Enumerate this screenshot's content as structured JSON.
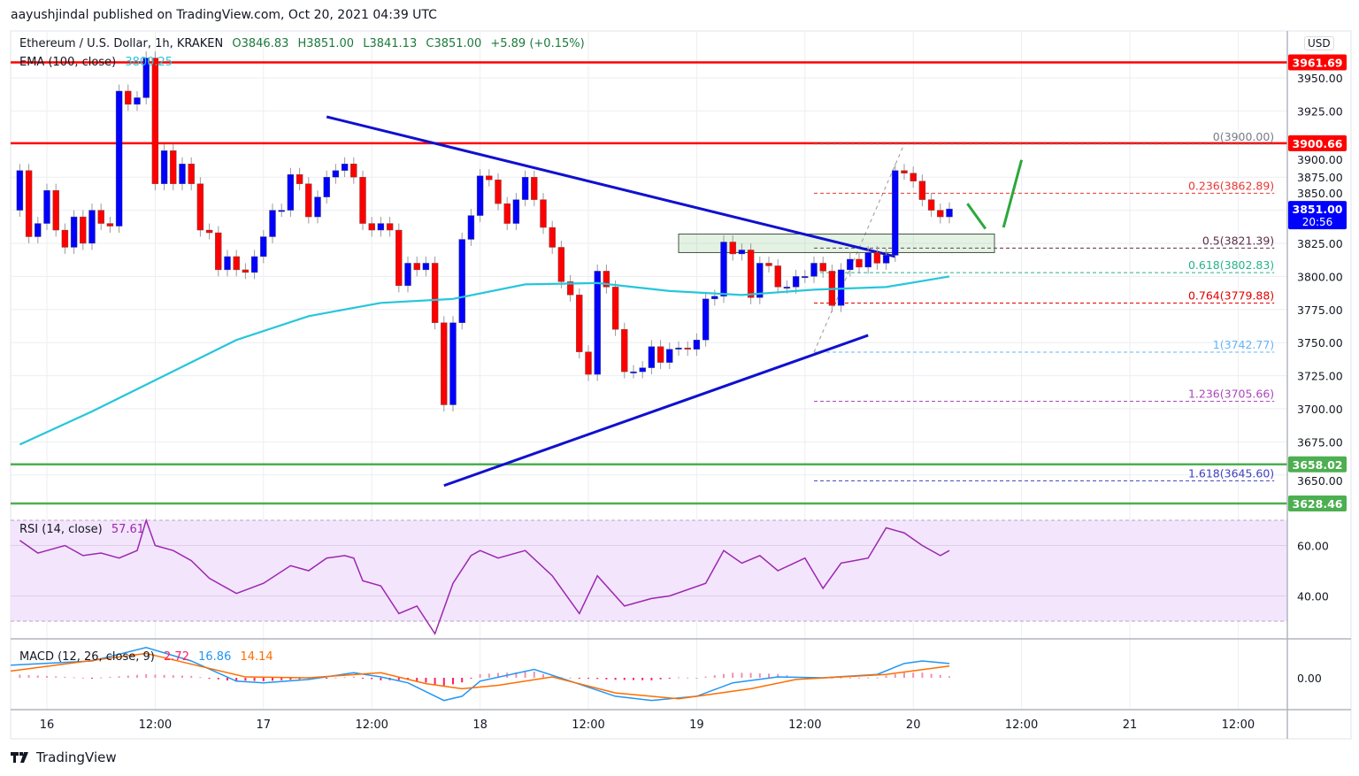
{
  "published": "aayushjindal published on TradingView.com, Oct 20, 2021 04:39 UTC",
  "legend": {
    "symbol": "Ethereum / U.S. Dollar, 1h, KRAKEN",
    "open": "O3846.83",
    "high": "H3851.00",
    "low": "L3841.13",
    "close": "C3851.00",
    "change": "+5.89 (+0.15%)",
    "ema_label": "EMA (100, close)",
    "ema_value": "3800.25",
    "rsi_label": "RSI (14, close)",
    "rsi_value": "57.61",
    "macd_label": "MACD (12, 26, close, 9)",
    "macd_hist": "2.72",
    "macd_macd": "16.86",
    "macd_signal": "14.14"
  },
  "currency_button": "USD",
  "brand": "TradingView",
  "colors": {
    "up": "#0000ff",
    "down": "#ff0000",
    "ema": "#26c6da",
    "rsi": "#9c27b0",
    "macd": "#2196f3",
    "signal": "#ff6d00",
    "resistance": "#ff0000",
    "support": "#4caf50",
    "trendline": "#1010d0",
    "arrow": "#2aa83a"
  },
  "chart_data": {
    "type": "candlestick",
    "title": "",
    "candles": {
      "start": "10-15 21:00",
      "interval": "1h",
      "first_open": 3850,
      "close": [
        3880,
        3830,
        3840,
        3865,
        3835,
        3822,
        3845,
        3825,
        3850,
        3840,
        3838,
        3940,
        3930,
        3935,
        3965,
        3870,
        3895,
        3870,
        3885,
        3870,
        3835,
        3833,
        3805,
        3815,
        3805,
        3803,
        3815,
        3830,
        3850,
        3850,
        3877,
        3870,
        3845,
        3860,
        3875,
        3880,
        3885,
        3875,
        3840,
        3835,
        3840,
        3835,
        3793,
        3810,
        3805,
        3810,
        3765,
        3703,
        3765,
        3828,
        3846,
        3876,
        3873,
        3855,
        3840,
        3858,
        3875,
        3858,
        3837,
        3822,
        3796,
        3786,
        3743,
        3726,
        3804,
        3792,
        3760,
        3728,
        3728,
        3731,
        3747,
        3735,
        3745,
        3746,
        3745,
        3752,
        3783,
        3785,
        3826,
        3817,
        3820,
        3784,
        3810,
        3808,
        3792,
        3792,
        3800,
        3800,
        3810,
        3804,
        3778,
        3805,
        3813,
        3807,
        3818,
        3810,
        3816,
        3880,
        3878,
        3872,
        3858,
        3850,
        3845,
        3851
      ]
    },
    "ema": [
      [
        "10-15 21:00",
        3673
      ],
      [
        "10-16 05:00",
        3698
      ],
      [
        "10-16 13:00",
        3725
      ],
      [
        "10-16 21:00",
        3752
      ],
      [
        "10-17 05:00",
        3770
      ],
      [
        "10-17 13:00",
        3780
      ],
      [
        "10-17 21:00",
        3783
      ],
      [
        "10-18 05:00",
        3794
      ],
      [
        "10-18 13:00",
        3795
      ],
      [
        "10-18 21:00",
        3789
      ],
      [
        "10-19 05:00",
        3786
      ],
      [
        "10-19 13:00",
        3790
      ],
      [
        "10-19 21:00",
        3792
      ],
      [
        "10-20 04:00",
        3800
      ]
    ],
    "y_axis": {
      "ticks": [
        "3650.00",
        "3675.00",
        "3700.00",
        "3725.00",
        "3750.00",
        "3775.00",
        "3800.00",
        "3825.00",
        "3850.00",
        "3875.00",
        "3900.00",
        "3925.00",
        "3950.00"
      ],
      "range": [
        3620,
        3975
      ]
    },
    "x_axis": {
      "ticks": [
        [
          "10-16 00:00",
          "16"
        ],
        [
          "10-16 12:00",
          "12:00"
        ],
        [
          "10-17 00:00",
          "17"
        ],
        [
          "10-17 12:00",
          "12:00"
        ],
        [
          "10-18 00:00",
          "18"
        ],
        [
          "10-18 12:00",
          "12:00"
        ],
        [
          "10-19 00:00",
          "19"
        ],
        [
          "10-19 12:00",
          "12:00"
        ],
        [
          "10-20 00:00",
          "20"
        ],
        [
          "10-20 12:00",
          "12:00"
        ],
        [
          "10-21 00:00",
          "21"
        ],
        [
          "10-21 12:00",
          "12:00"
        ]
      ]
    },
    "grid": true,
    "price_labels": [
      {
        "value": 3961.69,
        "text": "3961.69",
        "kind": "resistance"
      },
      {
        "value": 3900.66,
        "text": "3900.66",
        "kind": "resistance"
      },
      {
        "value": 3658.02,
        "text": "3658.02",
        "kind": "support"
      },
      {
        "value": 3628.46,
        "text": "3628.46",
        "kind": "support"
      }
    ],
    "last_price": {
      "value": 3851.0,
      "text": "3851.00",
      "countdown": "20:56"
    },
    "fibonacci": {
      "from": [
        "10-19 13:00",
        3742.77
      ],
      "to": [
        "10-19 23:00",
        3900.0
      ],
      "extend_to": "10-21 16:00",
      "levels": [
        {
          "ratio": "0",
          "value": 3900.0,
          "text": "0(3900.00)",
          "color": "#787b86"
        },
        {
          "ratio": "0.236",
          "value": 3862.89,
          "text": "0.236(3862.89)",
          "color": "#e53935"
        },
        {
          "ratio": "0.5",
          "value": 3821.39,
          "text": "0.5(3821.39)",
          "color": "#5d2e46"
        },
        {
          "ratio": "0.618",
          "value": 3802.83,
          "text": "0.618(3802.83)",
          "color": "#26b38a"
        },
        {
          "ratio": "0.764",
          "value": 3779.88,
          "text": "0.764(3779.88)",
          "color": "#e00000"
        },
        {
          "ratio": "1",
          "value": 3742.77,
          "text": "1(3742.77)",
          "color": "#64b5f6"
        },
        {
          "ratio": "1.236",
          "value": 3705.66,
          "text": "1.236(3705.66)",
          "color": "#ab47bc"
        },
        {
          "ratio": "1.618",
          "value": 3645.6,
          "text": "1.618(3645.60)",
          "color": "#3f3fc0"
        }
      ]
    },
    "trendlines": [
      {
        "from": [
          "10-17 07:00",
          3920.6
        ],
        "to": [
          "10-19 22:00",
          3815
        ]
      },
      {
        "from": [
          "10-17 20:00",
          3642
        ],
        "to": [
          "10-19 19:00",
          3755.5
        ]
      }
    ],
    "zone": {
      "from": "10-18 22:00",
      "to": "10-20 09:00",
      "low": 3818,
      "high": 3832
    },
    "arrows": [
      {
        "from": [
          "10-20 06:00",
          3855
        ],
        "to": [
          "10-20 08:00",
          3836
        ]
      },
      {
        "from": [
          "10-20 10:00",
          3837
        ],
        "to": [
          "10-20 12:00",
          3888
        ]
      }
    ],
    "rsi": {
      "ticks": [
        "60.00",
        "40.00"
      ],
      "band": [
        30,
        70
      ],
      "values": [
        [
          "10-15 21:00",
          62
        ],
        [
          "10-15 23:00",
          57
        ],
        [
          "10-16 02:00",
          60
        ],
        [
          "10-16 04:00",
          56
        ],
        [
          "10-16 06:00",
          57
        ],
        [
          "10-16 08:00",
          55
        ],
        [
          "10-16 10:00",
          58
        ],
        [
          "10-16 11:00",
          70
        ],
        [
          "10-16 12:00",
          60
        ],
        [
          "10-16 14:00",
          58
        ],
        [
          "10-16 16:00",
          54
        ],
        [
          "10-16 18:00",
          47
        ],
        [
          "10-16 21:00",
          41
        ],
        [
          "10-17 00:00",
          45
        ],
        [
          "10-17 03:00",
          52
        ],
        [
          "10-17 05:00",
          50
        ],
        [
          "10-17 07:00",
          55
        ],
        [
          "10-17 09:00",
          56
        ],
        [
          "10-17 10:00",
          55
        ],
        [
          "10-17 11:00",
          46
        ],
        [
          "10-17 13:00",
          44
        ],
        [
          "10-17 15:00",
          33
        ],
        [
          "10-17 17:00",
          36
        ],
        [
          "10-17 19:00",
          25
        ],
        [
          "10-17 21:00",
          45
        ],
        [
          "10-17 23:00",
          56
        ],
        [
          "10-18 00:00",
          58
        ],
        [
          "10-18 02:00",
          55
        ],
        [
          "10-18 05:00",
          58
        ],
        [
          "10-18 08:00",
          48
        ],
        [
          "10-18 11:00",
          33
        ],
        [
          "10-18 13:00",
          48
        ],
        [
          "10-18 16:00",
          36
        ],
        [
          "10-18 19:00",
          39
        ],
        [
          "10-18 21:00",
          40
        ],
        [
          "10-19 01:00",
          45
        ],
        [
          "10-19 03:00",
          58
        ],
        [
          "10-19 05:00",
          53
        ],
        [
          "10-19 07:00",
          56
        ],
        [
          "10-19 09:00",
          50
        ],
        [
          "10-19 12:00",
          55
        ],
        [
          "10-19 14:00",
          43
        ],
        [
          "10-19 16:00",
          53
        ],
        [
          "10-19 19:00",
          55
        ],
        [
          "10-19 21:00",
          67
        ],
        [
          "10-19 23:00",
          65
        ],
        [
          "10-20 01:00",
          60
        ],
        [
          "10-20 03:00",
          56
        ],
        [
          "10-20 04:00",
          58
        ]
      ]
    },
    "macd": {
      "ticks": [
        "0.00"
      ],
      "macd": [
        [
          "10-15 20:00",
          15
        ],
        [
          "10-16 05:00",
          20
        ],
        [
          "10-16 11:00",
          36
        ],
        [
          "10-16 16:00",
          20
        ],
        [
          "10-16 21:00",
          -4
        ],
        [
          "10-17 00:00",
          -6
        ],
        [
          "10-17 05:00",
          -2
        ],
        [
          "10-17 10:00",
          6
        ],
        [
          "10-17 13:00",
          1
        ],
        [
          "10-17 16:00",
          -6
        ],
        [
          "10-17 20:00",
          -27
        ],
        [
          "10-17 22:00",
          -22
        ],
        [
          "10-18 00:00",
          -4
        ],
        [
          "10-18 06:00",
          10
        ],
        [
          "10-18 10:00",
          -4
        ],
        [
          "10-18 15:00",
          -22
        ],
        [
          "10-18 19:00",
          -27
        ],
        [
          "10-19 00:00",
          -22
        ],
        [
          "10-19 04:00",
          -6
        ],
        [
          "10-19 09:00",
          1
        ],
        [
          "10-19 14:00",
          0
        ],
        [
          "10-19 20:00",
          4
        ],
        [
          "10-19 23:00",
          17
        ],
        [
          "10-20 01:00",
          20
        ],
        [
          "10-20 04:00",
          17
        ]
      ],
      "signal": [
        [
          "10-15 20:00",
          8
        ],
        [
          "10-16 11:00",
          29
        ],
        [
          "10-16 22:00",
          1
        ],
        [
          "10-17 05:00",
          0
        ],
        [
          "10-17 13:00",
          6
        ],
        [
          "10-17 18:00",
          -7
        ],
        [
          "10-17 22:00",
          -13
        ],
        [
          "10-18 02:00",
          -9
        ],
        [
          "10-18 08:00",
          1
        ],
        [
          "10-18 15:00",
          -18
        ],
        [
          "10-18 22:00",
          -25
        ],
        [
          "10-19 06:00",
          -13
        ],
        [
          "10-19 11:00",
          -2
        ],
        [
          "10-19 21:00",
          4
        ],
        [
          "10-20 04:00",
          14
        ]
      ]
    }
  }
}
